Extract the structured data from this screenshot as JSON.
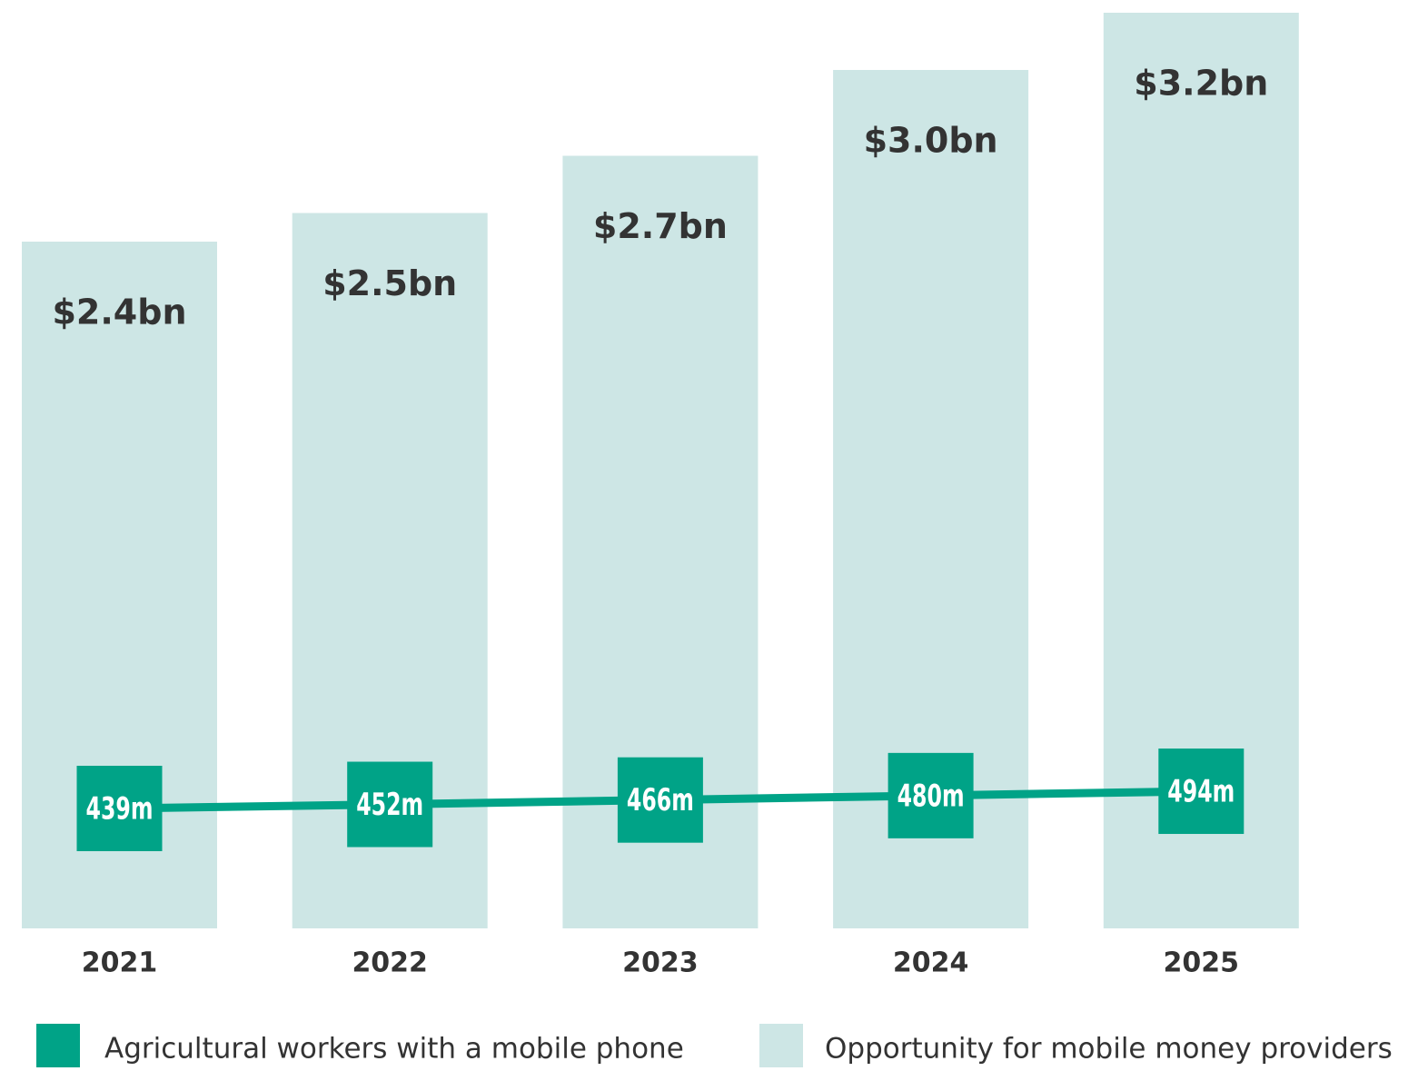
{
  "chart_data": {
    "type": "bar",
    "categories": [
      "2021",
      "2022",
      "2023",
      "2024",
      "2025"
    ],
    "series": [
      {
        "name": "Opportunity for mobile money providers",
        "type": "bar",
        "color": "#cde6e5",
        "values": [
          2.4,
          2.5,
          2.7,
          3.0,
          3.2
        ],
        "value_labels": [
          "$2.4bn",
          "$2.5bn",
          "$2.7bn",
          "$3.0bn",
          "$3.2bn"
        ]
      },
      {
        "name": "Agricultural workers with a mobile phone",
        "type": "line",
        "color": "#00a387",
        "values": [
          439,
          452,
          466,
          480,
          494
        ],
        "value_labels": [
          "439m",
          "452m",
          "466m",
          "480m",
          "494m"
        ]
      }
    ]
  }
}
